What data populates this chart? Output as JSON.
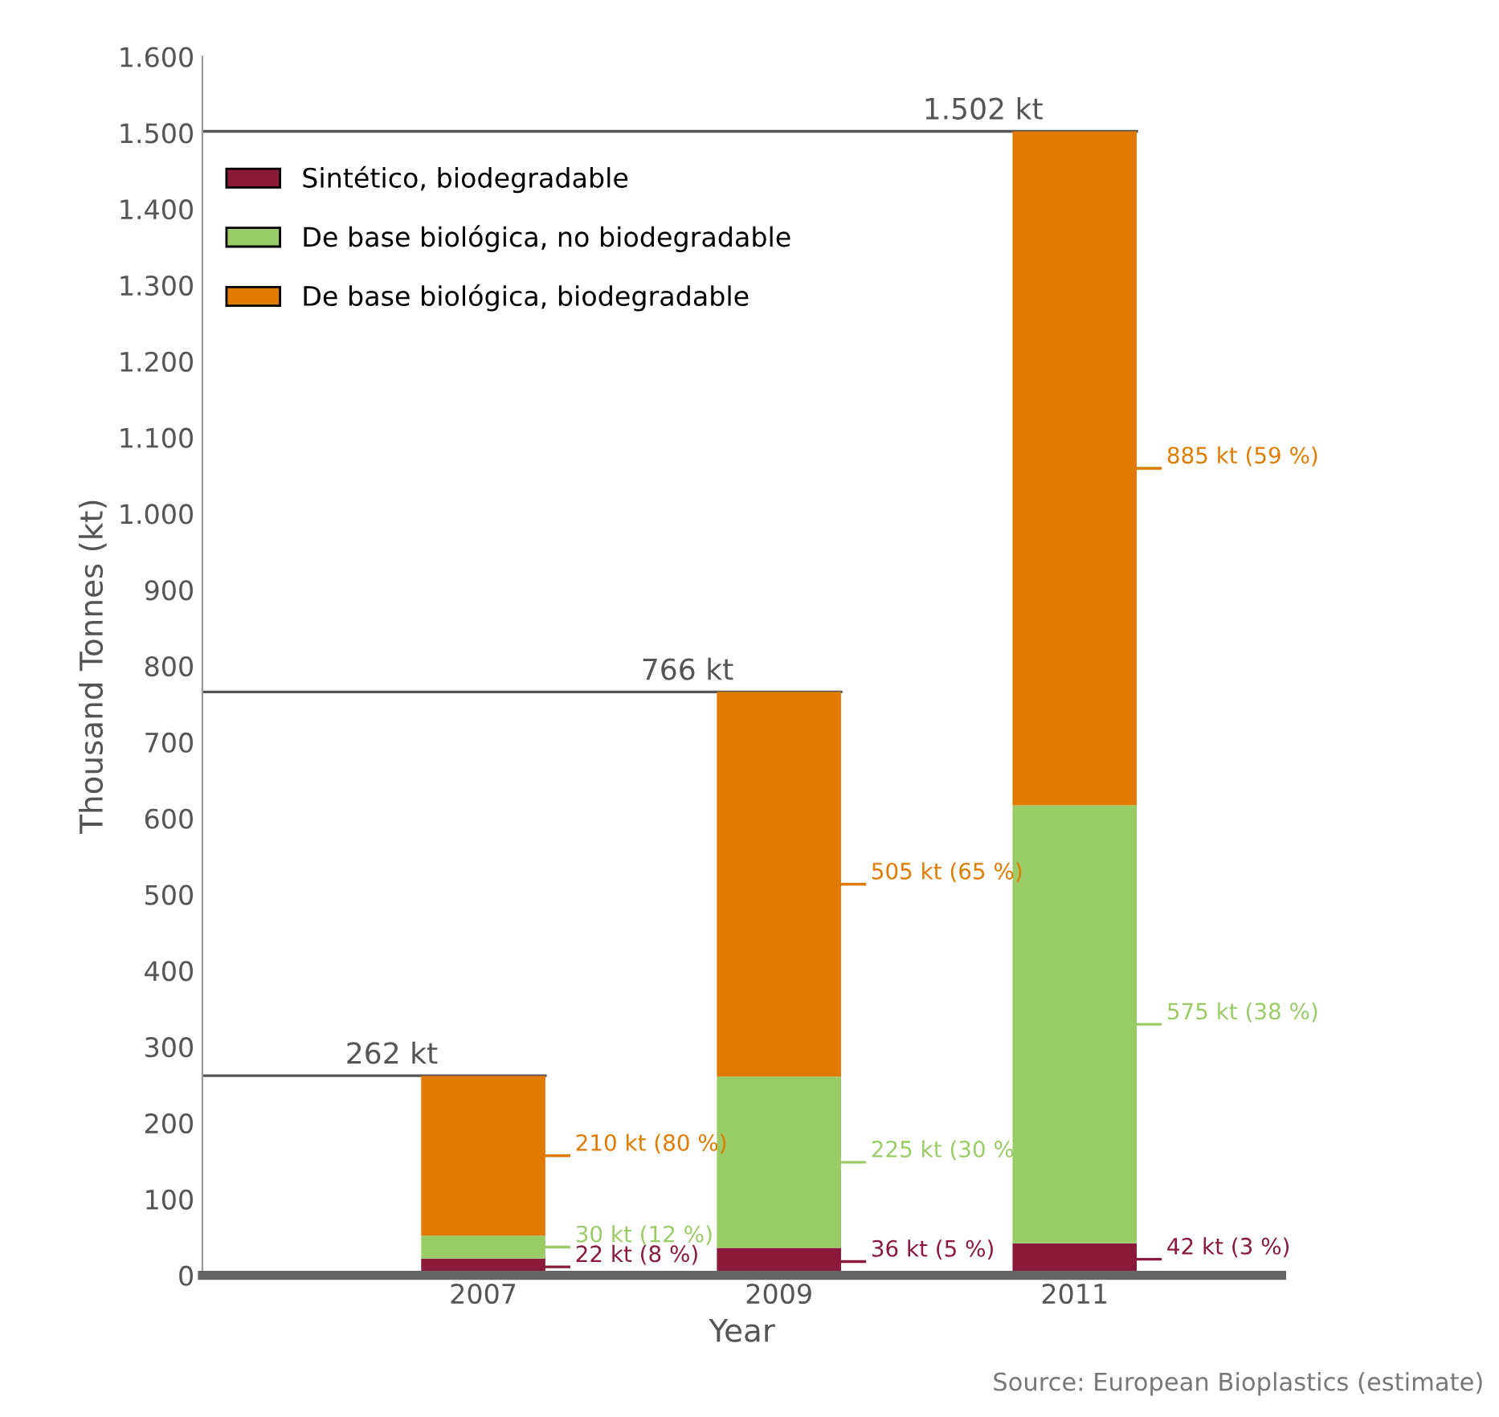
{
  "chart_data": {
    "type": "bar",
    "stacked": true,
    "xlabel": "Year",
    "ylabel": "Thousand Tonnes (kt)",
    "categories": [
      "2007",
      "2009",
      "2011"
    ],
    "series": [
      {
        "name": "Sintético, biodegradable",
        "color": "#8b1a3a",
        "values": [
          22,
          36,
          42
        ],
        "value_labels": [
          "22 kt (8 %)",
          "36 kt (5 %)",
          "42 kt (3 %)"
        ]
      },
      {
        "name": "De base biológica, no biodegradable",
        "color": "#99cc66",
        "values": [
          30,
          225,
          575
        ],
        "value_labels": [
          "30 kt (12 %)",
          "225 kt (30 %)",
          "575 kt (38 %)"
        ]
      },
      {
        "name": "De base biológica, biodegradable",
        "color": "#e07b00",
        "values": [
          210,
          505,
          885
        ],
        "value_labels": [
          "210 kt (80 %)",
          "505 kt (65 %)",
          "885 kt (59 %)"
        ]
      }
    ],
    "ref_lines": [
      {
        "axis": "y",
        "value": 262,
        "label": "262 kt",
        "color": "#555555"
      },
      {
        "axis": "y",
        "value": 766,
        "label": "766 kt",
        "color": "#555555"
      },
      {
        "axis": "y",
        "value": 1502,
        "label": "1.502 kt",
        "color": "#555555"
      }
    ],
    "ylim": [
      0,
      1600
    ],
    "yticks": [
      0,
      100,
      200,
      300,
      400,
      500,
      600,
      700,
      800,
      900,
      {
        "value": 1000,
        "label": "1.000"
      },
      {
        "value": 1100,
        "label": "1.100"
      },
      {
        "value": 1200,
        "label": "1.200"
      },
      {
        "value": 1300,
        "label": "1.300"
      },
      {
        "value": 1400,
        "label": "1.400"
      },
      {
        "value": 1500,
        "label": "1.500"
      },
      {
        "value": 1600,
        "label": "1.600"
      }
    ],
    "grid": false,
    "legend": "top left",
    "annotations": [
      "Source: European Bioplastics (estimate)"
    ]
  }
}
